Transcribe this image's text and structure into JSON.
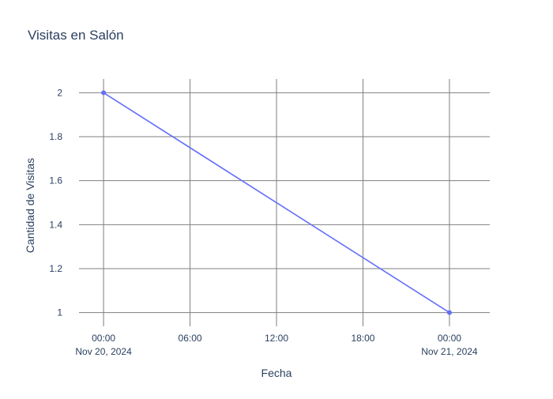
{
  "chart_data": {
    "type": "line",
    "title": "Visitas en Salón",
    "xlabel": "Fecha",
    "ylabel": "Cantidad de Visitas",
    "x_type": "date",
    "xlim": [
      "2024-11-19T21:12:00",
      "2024-11-21T02:48:00"
    ],
    "ylim": [
      0.9375,
      2.0625
    ],
    "grid": true,
    "x_ticks": [
      {
        "value": "2024-11-20T00:00:00",
        "label": "00:00",
        "sublabel": "Nov 20, 2024"
      },
      {
        "value": "2024-11-20T06:00:00",
        "label": "06:00",
        "sublabel": ""
      },
      {
        "value": "2024-11-20T12:00:00",
        "label": "12:00",
        "sublabel": ""
      },
      {
        "value": "2024-11-20T18:00:00",
        "label": "18:00",
        "sublabel": ""
      },
      {
        "value": "2024-11-21T00:00:00",
        "label": "00:00",
        "sublabel": "Nov 21, 2024"
      }
    ],
    "y_ticks": [
      1,
      1.2,
      1.4,
      1.6,
      1.8,
      2
    ],
    "y_tick_labels": [
      "1",
      "1.2",
      "1.4",
      "1.6",
      "1.8",
      "2"
    ],
    "series": [
      {
        "color": "#636efa",
        "x": [
          "2024-11-20T00:00:00",
          "2024-11-21T00:00:00"
        ],
        "y": [
          2,
          1
        ]
      }
    ]
  }
}
